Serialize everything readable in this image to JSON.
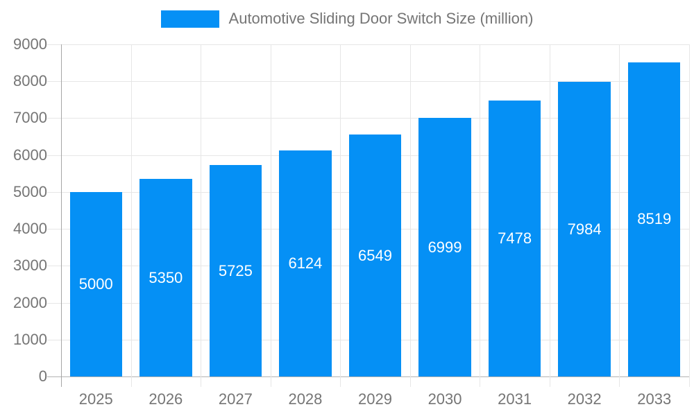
{
  "legend": {
    "label": "Automotive Sliding Door Switch Size (million)"
  },
  "chart_data": {
    "type": "bar",
    "title": "Automotive Sliding Door Switch Size (million)",
    "categories": [
      "2025",
      "2026",
      "2027",
      "2028",
      "2029",
      "2030",
      "2031",
      "2032",
      "2033"
    ],
    "values": [
      5000,
      5350,
      5725,
      6124,
      6549,
      6999,
      7478,
      7984,
      8519
    ],
    "xlabel": "",
    "ylabel": "",
    "ylim": [
      0,
      9000
    ],
    "ytick_step": 1000,
    "ytick_labels": [
      "0",
      "1000",
      "2000",
      "3000",
      "4000",
      "5000",
      "6000",
      "7000",
      "8000",
      "9000"
    ],
    "grid": true,
    "legend_position": "top",
    "bar_color": "#0590F5",
    "value_label_color": "#ffffff",
    "axis_text_color": "#757575",
    "gridline_color": "#e6e6e6",
    "baseline_color": "#b3b3b3",
    "axis_line_color": "#a6a6a6"
  }
}
